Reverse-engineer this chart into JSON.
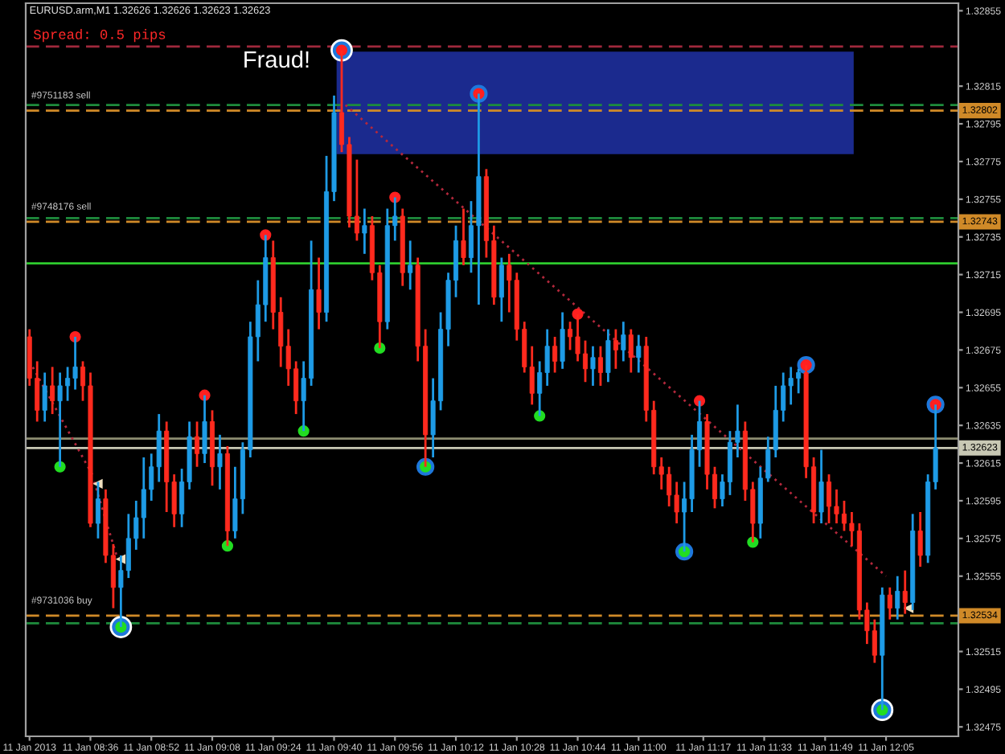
{
  "chart_data": {
    "type": "candlestick",
    "title": "EURUSD.arm,M1 1.32626 1.32626 1.32623 1.32623",
    "x": [
      "2013-01-11T08:20",
      "2013-01-11T08:22",
      "2013-01-11T08:24",
      "2013-01-11T08:26",
      "2013-01-11T08:28",
      "2013-01-11T08:30",
      "2013-01-11T08:32",
      "2013-01-11T08:34",
      "2013-01-11T08:36",
      "2013-01-11T08:38",
      "2013-01-11T08:40",
      "2013-01-11T08:42",
      "2013-01-11T08:44",
      "2013-01-11T08:46",
      "2013-01-11T08:48",
      "2013-01-11T08:50",
      "2013-01-11T08:52",
      "2013-01-11T08:54",
      "2013-01-11T08:56",
      "2013-01-11T08:58",
      "2013-01-11T09:00",
      "2013-01-11T09:02",
      "2013-01-11T09:04",
      "2013-01-11T09:06",
      "2013-01-11T09:08",
      "2013-01-11T09:10",
      "2013-01-11T09:12",
      "2013-01-11T09:14",
      "2013-01-11T09:16",
      "2013-01-11T09:18",
      "2013-01-11T09:20",
      "2013-01-11T09:22",
      "2013-01-11T09:24",
      "2013-01-11T09:26",
      "2013-01-11T09:28",
      "2013-01-11T09:30",
      "2013-01-11T09:32",
      "2013-01-11T09:34",
      "2013-01-11T09:36",
      "2013-01-11T09:38",
      "2013-01-11T09:40",
      "2013-01-11T09:42",
      "2013-01-11T09:44",
      "2013-01-11T09:46",
      "2013-01-11T09:48",
      "2013-01-11T09:50",
      "2013-01-11T09:52",
      "2013-01-11T09:54",
      "2013-01-11T09:56",
      "2013-01-11T09:58",
      "2013-01-11T10:00",
      "2013-01-11T10:02",
      "2013-01-11T10:04",
      "2013-01-11T10:06",
      "2013-01-11T10:08",
      "2013-01-11T10:10",
      "2013-01-11T10:12",
      "2013-01-11T10:14",
      "2013-01-11T10:16",
      "2013-01-11T10:18",
      "2013-01-11T10:20",
      "2013-01-11T10:22",
      "2013-01-11T10:24",
      "2013-01-11T10:26",
      "2013-01-11T10:28",
      "2013-01-11T10:30",
      "2013-01-11T10:32",
      "2013-01-11T10:34",
      "2013-01-11T10:36",
      "2013-01-11T10:38",
      "2013-01-11T10:40",
      "2013-01-11T10:42",
      "2013-01-11T10:44",
      "2013-01-11T10:46",
      "2013-01-11T10:48",
      "2013-01-11T10:50",
      "2013-01-11T10:52",
      "2013-01-11T10:54",
      "2013-01-11T10:56",
      "2013-01-11T10:58",
      "2013-01-11T11:00",
      "2013-01-11T11:02",
      "2013-01-11T11:04",
      "2013-01-11T11:06",
      "2013-01-11T11:08",
      "2013-01-11T11:10",
      "2013-01-11T11:12",
      "2013-01-11T11:14",
      "2013-01-11T11:16",
      "2013-01-11T11:18",
      "2013-01-11T11:20",
      "2013-01-11T11:22",
      "2013-01-11T11:24",
      "2013-01-11T11:26",
      "2013-01-11T11:28",
      "2013-01-11T11:30",
      "2013-01-11T11:32",
      "2013-01-11T11:34",
      "2013-01-11T11:36",
      "2013-01-11T11:38",
      "2013-01-11T11:40",
      "2013-01-11T11:42",
      "2013-01-11T11:44",
      "2013-01-11T11:46",
      "2013-01-11T11:48",
      "2013-01-11T11:50",
      "2013-01-11T11:52",
      "2013-01-11T11:54",
      "2013-01-11T11:56",
      "2013-01-11T11:58",
      "2013-01-11T12:00",
      "2013-01-11T12:02",
      "2013-01-11T12:04",
      "2013-01-11T12:06",
      "2013-01-11T12:08",
      "2013-01-11T12:10",
      "2013-01-11T12:12",
      "2013-01-11T12:14",
      "2013-01-11T12:16",
      "2013-01-11T12:18"
    ],
    "ohlc": [
      [
        1.32682,
        1.32686,
        1.32656,
        1.3266
      ],
      [
        1.3266,
        1.32669,
        1.32637,
        1.32643
      ],
      [
        1.32643,
        1.32663,
        1.32637,
        1.32656
      ],
      [
        1.32656,
        1.32666,
        1.32641,
        1.32648
      ],
      [
        1.32648,
        1.32663,
        1.32613,
        1.32656
      ],
      [
        1.32656,
        1.32666,
        1.32648,
        1.3266
      ],
      [
        1.3266,
        1.32682,
        1.32654,
        1.32666
      ],
      [
        1.32666,
        1.32669,
        1.32648,
        1.32656
      ],
      [
        1.32656,
        1.32663,
        1.32581,
        1.32583
      ],
      [
        1.32583,
        1.32605,
        1.32575,
        1.32596
      ],
      [
        1.32596,
        1.32601,
        1.32562,
        1.32566
      ],
      [
        1.32566,
        1.32572,
        1.32538,
        1.32549
      ],
      [
        1.32549,
        1.32566,
        1.32528,
        1.32558
      ],
      [
        1.32558,
        1.32588,
        1.32554,
        1.32575
      ],
      [
        1.32575,
        1.32595,
        1.32569,
        1.32586
      ],
      [
        1.32586,
        1.32618,
        1.32575,
        1.32601
      ],
      [
        1.32601,
        1.3262,
        1.32595,
        1.32613
      ],
      [
        1.32613,
        1.32641,
        1.32605,
        1.32632
      ],
      [
        1.32632,
        1.32637,
        1.32589,
        1.32605
      ],
      [
        1.32605,
        1.32609,
        1.32581,
        1.32588
      ],
      [
        1.32588,
        1.32612,
        1.32581,
        1.32605
      ],
      [
        1.32605,
        1.32637,
        1.32601,
        1.32629
      ],
      [
        1.32629,
        1.32637,
        1.32613,
        1.3262
      ],
      [
        1.3262,
        1.32651,
        1.32615,
        1.32637
      ],
      [
        1.32637,
        1.32643,
        1.32603,
        1.32613
      ],
      [
        1.32613,
        1.3263,
        1.32601,
        1.3262
      ],
      [
        1.3262,
        1.32624,
        1.32571,
        1.32579
      ],
      [
        1.32579,
        1.32613,
        1.32575,
        1.32596
      ],
      [
        1.32596,
        1.32626,
        1.32588,
        1.32622
      ],
      [
        1.32622,
        1.3269,
        1.32618,
        1.32682
      ],
      [
        1.32682,
        1.32712,
        1.32669,
        1.32699
      ],
      [
        1.32699,
        1.32736,
        1.3269,
        1.32724
      ],
      [
        1.32724,
        1.32733,
        1.32686,
        1.32695
      ],
      [
        1.32695,
        1.32703,
        1.32666,
        1.32677
      ],
      [
        1.32677,
        1.32686,
        1.32656,
        1.32665
      ],
      [
        1.32665,
        1.32669,
        1.32641,
        1.32648
      ],
      [
        1.32648,
        1.32669,
        1.32632,
        1.3266
      ],
      [
        1.3266,
        1.32733,
        1.32656,
        1.32707
      ],
      [
        1.32707,
        1.32724,
        1.32686,
        1.32695
      ],
      [
        1.32695,
        1.32778,
        1.3269,
        1.32759
      ],
      [
        1.32759,
        1.3281,
        1.32754,
        1.32801
      ],
      [
        1.32801,
        1.32834,
        1.3278,
        1.32784
      ],
      [
        1.32784,
        1.32788,
        1.3274,
        1.32746
      ],
      [
        1.32746,
        1.32776,
        1.32733,
        1.32737
      ],
      [
        1.32737,
        1.3275,
        1.32726,
        1.32741
      ],
      [
        1.32741,
        1.32746,
        1.32712,
        1.32716
      ],
      [
        1.32716,
        1.3272,
        1.32676,
        1.3269
      ],
      [
        1.3269,
        1.3275,
        1.32686,
        1.32741
      ],
      [
        1.32741,
        1.32756,
        1.32733,
        1.32746
      ],
      [
        1.32746,
        1.3275,
        1.32709,
        1.32716
      ],
      [
        1.32716,
        1.32733,
        1.32707,
        1.3272
      ],
      [
        1.3272,
        1.32724,
        1.32669,
        1.32677
      ],
      [
        1.32677,
        1.32686,
        1.32613,
        1.3263
      ],
      [
        1.3263,
        1.3266,
        1.32618,
        1.32648
      ],
      [
        1.32648,
        1.32695,
        1.32643,
        1.32686
      ],
      [
        1.32686,
        1.32716,
        1.32677,
        1.32712
      ],
      [
        1.32712,
        1.32741,
        1.32703,
        1.32733
      ],
      [
        1.32733,
        1.3275,
        1.3272,
        1.32724
      ],
      [
        1.32724,
        1.32754,
        1.32716,
        1.32741
      ],
      [
        1.32741,
        1.32811,
        1.32699,
        1.32767
      ],
      [
        1.32767,
        1.32771,
        1.32724,
        1.32733
      ],
      [
        1.32733,
        1.32741,
        1.32699,
        1.32703
      ],
      [
        1.32703,
        1.32724,
        1.3269,
        1.3272
      ],
      [
        1.3272,
        1.32726,
        1.32695,
        1.32712
      ],
      [
        1.32712,
        1.32716,
        1.3268,
        1.32686
      ],
      [
        1.32686,
        1.3269,
        1.32663,
        1.32666
      ],
      [
        1.32666,
        1.32677,
        1.32646,
        1.32652
      ],
      [
        1.32652,
        1.32669,
        1.3264,
        1.32663
      ],
      [
        1.32663,
        1.32686,
        1.32656,
        1.32677
      ],
      [
        1.32677,
        1.32682,
        1.32663,
        1.32669
      ],
      [
        1.32669,
        1.32695,
        1.32665,
        1.32686
      ],
      [
        1.32686,
        1.3269,
        1.32675,
        1.32682
      ],
      [
        1.32682,
        1.32694,
        1.32669,
        1.32673
      ],
      [
        1.32673,
        1.3268,
        1.32658,
        1.32665
      ],
      [
        1.32665,
        1.32677,
        1.32656,
        1.32671
      ],
      [
        1.32671,
        1.32677,
        1.32656,
        1.32663
      ],
      [
        1.32663,
        1.32686,
        1.32658,
        1.3268
      ],
      [
        1.3268,
        1.32686,
        1.32665,
        1.32675
      ],
      [
        1.32675,
        1.3269,
        1.32669,
        1.32683
      ],
      [
        1.32683,
        1.32686,
        1.32663,
        1.32671
      ],
      [
        1.32671,
        1.32683,
        1.32663,
        1.32677
      ],
      [
        1.32677,
        1.32682,
        1.32637,
        1.32643
      ],
      [
        1.32643,
        1.32648,
        1.32609,
        1.32613
      ],
      [
        1.32613,
        1.32618,
        1.32601,
        1.32609
      ],
      [
        1.32609,
        1.32613,
        1.32592,
        1.32598
      ],
      [
        1.32598,
        1.32605,
        1.32583,
        1.32589
      ],
      [
        1.32589,
        1.32605,
        1.32568,
        1.32596
      ],
      [
        1.32596,
        1.3263,
        1.32589,
        1.32622
      ],
      [
        1.32622,
        1.32648,
        1.32613,
        1.32637
      ],
      [
        1.32637,
        1.32641,
        1.32601,
        1.32609
      ],
      [
        1.32609,
        1.32613,
        1.32591,
        1.32596
      ],
      [
        1.32596,
        1.32609,
        1.32592,
        1.32605
      ],
      [
        1.32605,
        1.32632,
        1.32598,
        1.32626
      ],
      [
        1.32626,
        1.32646,
        1.32618,
        1.32632
      ],
      [
        1.32632,
        1.32637,
        1.32595,
        1.32601
      ],
      [
        1.32601,
        1.32605,
        1.32573,
        1.32583
      ],
      [
        1.32583,
        1.32613,
        1.32575,
        1.32607
      ],
      [
        1.32607,
        1.32629,
        1.32605,
        1.32622
      ],
      [
        1.32622,
        1.32656,
        1.32618,
        1.32643
      ],
      [
        1.32643,
        1.32663,
        1.32637,
        1.32656
      ],
      [
        1.32656,
        1.32666,
        1.32646,
        1.3266
      ],
      [
        1.3266,
        1.32665,
        1.32652,
        1.32663
      ],
      [
        1.32663,
        1.32667,
        1.32607,
        1.32613
      ],
      [
        1.32613,
        1.32618,
        1.32583,
        1.32589
      ],
      [
        1.32589,
        1.32622,
        1.32583,
        1.32605
      ],
      [
        1.32605,
        1.32609,
        1.32583,
        1.32592
      ],
      [
        1.32592,
        1.32601,
        1.32583,
        1.32588
      ],
      [
        1.32588,
        1.32595,
        1.32579,
        1.32583
      ],
      [
        1.32583,
        1.32589,
        1.32571,
        1.32579
      ],
      [
        1.32579,
        1.32583,
        1.32532,
        1.32537
      ],
      [
        1.32537,
        1.32541,
        1.32519,
        1.32526
      ],
      [
        1.32526,
        1.32532,
        1.32509,
        1.32513
      ],
      [
        1.32513,
        1.32549,
        1.32484,
        1.32545
      ],
      [
        1.32545,
        1.32549,
        1.32532,
        1.32538
      ],
      [
        1.32538,
        1.32555,
        1.32532,
        1.32547
      ],
      [
        1.32547,
        1.32558,
        1.32535,
        1.32541
      ],
      [
        1.32541,
        1.32588,
        1.32537,
        1.32579
      ],
      [
        1.32579,
        1.32589,
        1.3256,
        1.32566
      ],
      [
        1.32566,
        1.32609,
        1.32562,
        1.32605
      ],
      [
        1.32605,
        1.32646,
        1.32601,
        1.32623
      ]
    ],
    "colors": [
      "#ff2a1e",
      "#ff2a1e",
      "#1e9be6",
      "#ff2a1e",
      "#1e9be6",
      "#1e9be6",
      "#1e9be6",
      "#ff2a1e",
      "#ff2a1e",
      "#1e9be6",
      "#ff2a1e",
      "#ff2a1e",
      "#1e9be6",
      "#1e9be6",
      "#1e9be6",
      "#1e9be6",
      "#1e9be6",
      "#1e9be6",
      "#ff2a1e",
      "#ff2a1e",
      "#1e9be6",
      "#1e9be6",
      "#ff2a1e",
      "#1e9be6",
      "#ff2a1e",
      "#1e9be6",
      "#ff2a1e",
      "#1e9be6",
      "#1e9be6",
      "#1e9be6",
      "#1e9be6",
      "#1e9be6",
      "#ff2a1e",
      "#ff2a1e",
      "#ff2a1e",
      "#ff2a1e",
      "#1e9be6",
      "#1e9be6",
      "#ff2a1e",
      "#1e9be6",
      "#1e9be6",
      "#ff2a1e",
      "#ff2a1e",
      "#ff2a1e",
      "#1e9be6",
      "#ff2a1e",
      "#ff2a1e",
      "#1e9be6",
      "#1e9be6",
      "#ff2a1e",
      "#1e9be6",
      "#ff2a1e",
      "#ff2a1e",
      "#1e9be6",
      "#1e9be6",
      "#1e9be6",
      "#1e9be6",
      "#ff2a1e",
      "#1e9be6",
      "#1e9be6",
      "#ff2a1e",
      "#ff2a1e",
      "#1e9be6",
      "#ff2a1e",
      "#ff2a1e",
      "#ff2a1e",
      "#ff2a1e",
      "#1e9be6",
      "#1e9be6",
      "#ff2a1e",
      "#1e9be6",
      "#ff2a1e",
      "#ff2a1e",
      "#ff2a1e",
      "#1e9be6",
      "#ff2a1e",
      "#1e9be6",
      "#ff2a1e",
      "#1e9be6",
      "#ff2a1e",
      "#1e9be6",
      "#ff2a1e",
      "#ff2a1e",
      "#ff2a1e",
      "#ff2a1e",
      "#ff2a1e",
      "#1e9be6",
      "#1e9be6",
      "#1e9be6",
      "#ff2a1e",
      "#ff2a1e",
      "#1e9be6",
      "#1e9be6",
      "#1e9be6",
      "#ff2a1e",
      "#ff2a1e",
      "#1e9be6",
      "#1e9be6",
      "#1e9be6",
      "#1e9be6",
      "#1e9be6",
      "#1e9be6",
      "#ff2a1e",
      "#ff2a1e",
      "#1e9be6",
      "#ff2a1e",
      "#ff2a1e",
      "#ff2a1e",
      "#ff2a1e",
      "#ff2a1e",
      "#ff2a1e",
      "#ff2a1e",
      "#1e9be6",
      "#ff2a1e",
      "#1e9be6",
      "#ff2a1e",
      "#1e9be6",
      "#ff2a1e",
      "#1e9be6",
      "#1e9be6"
    ],
    "marker": "circle",
    "series": [
      {
        "type": "scatter",
        "color": "#ffffff",
        "x": [
          "2013-01-11T08:44",
          "2013-01-11T09:42",
          "2013-01-11T12:04"
        ],
        "values": [
          1.32528,
          1.32834,
          1.32484
        ]
      },
      {
        "type": "scatter",
        "color": "#1e78dc",
        "x": [
          "2013-01-11T08:44",
          "2013-01-11T09:42",
          "2013-01-11T10:04",
          "2013-01-11T10:18",
          "2013-01-11T11:12",
          "2013-01-11T11:44",
          "2013-01-11T12:04",
          "2013-01-11T12:18"
        ],
        "values": [
          1.32528,
          1.32834,
          1.32613,
          1.32811,
          1.32568,
          1.32667,
          1.32484,
          1.32646
        ]
      },
      {
        "type": "scatter",
        "color": "#ff2020",
        "x": [
          "2013-01-11T08:32",
          "2013-01-11T09:06",
          "2013-01-11T09:22",
          "2013-01-11T09:42",
          "2013-01-11T09:56",
          "2013-01-11T10:18",
          "2013-01-11T10:44",
          "2013-01-11T11:16",
          "2013-01-11T11:44",
          "2013-01-11T12:18"
        ],
        "values": [
          1.32682,
          1.32651,
          1.32736,
          1.32834,
          1.32756,
          1.32811,
          1.32694,
          1.32648,
          1.32667,
          1.32646
        ]
      },
      {
        "type": "scatter",
        "color": "#22dd22",
        "x": [
          "2013-01-11T08:28",
          "2013-01-11T08:44",
          "2013-01-11T09:12",
          "2013-01-11T09:32",
          "2013-01-11T09:52",
          "2013-01-11T10:04",
          "2013-01-11T10:34",
          "2013-01-11T11:12",
          "2013-01-11T11:30",
          "2013-01-11T12:04"
        ],
        "values": [
          1.32613,
          1.32528,
          1.32571,
          1.32632,
          1.32676,
          1.32613,
          1.3264,
          1.32568,
          1.32573,
          1.32484
        ]
      },
      {
        "type": "line",
        "color": "#b4283c",
        "line_style": "dotted",
        "marker": "none",
        "x": [
          "2013-01-11T09:43",
          "2013-01-11T12:05"
        ],
        "values": [
          1.32805,
          1.32555
        ]
      },
      {
        "type": "line",
        "color": "#b4283c",
        "line_style": "dotted",
        "marker": "none",
        "x": [
          "2013-01-11T08:20",
          "2013-01-11T08:37"
        ],
        "values": [
          1.32669,
          1.32607
        ]
      },
      {
        "type": "line",
        "color": "#b4283c",
        "line_style": "dotted",
        "marker": "none",
        "x": [
          "2013-01-11T08:37",
          "2013-01-11T08:43"
        ],
        "values": [
          1.32605,
          1.32565
        ]
      },
      {
        "type": "scatter",
        "color": "#f0e0c0",
        "marker": "triangle",
        "x": [
          "2013-01-11T08:38",
          "2013-01-11T08:44",
          "2013-01-11T12:11"
        ],
        "values": [
          1.32604,
          1.32564,
          1.32538
        ]
      }
    ],
    "xlim": [
      "2013-01-11T08:19",
      "2013-01-11T12:24"
    ],
    "xticks": [
      {
        "value": "2013-01-11T08:20",
        "label": "11 Jan 2013"
      },
      {
        "value": "2013-01-11T08:36",
        "label": "11 Jan 08:36"
      },
      {
        "value": "2013-01-11T08:52",
        "label": "11 Jan 08:52"
      },
      {
        "value": "2013-01-11T09:08",
        "label": "11 Jan 09:08"
      },
      {
        "value": "2013-01-11T09:24",
        "label": "11 Jan 09:24"
      },
      {
        "value": "2013-01-11T09:40",
        "label": "11 Jan 09:40"
      },
      {
        "value": "2013-01-11T09:56",
        "label": "11 Jan 09:56"
      },
      {
        "value": "2013-01-11T10:12",
        "label": "11 Jan 10:12"
      },
      {
        "value": "2013-01-11T10:28",
        "label": "11 Jan 10:28"
      },
      {
        "value": "2013-01-11T10:44",
        "label": "11 Jan 10:44"
      },
      {
        "value": "2013-01-11T11:00",
        "label": "11 Jan 11:00"
      },
      {
        "value": "2013-01-11T11:17",
        "label": "11 Jan 11:17"
      },
      {
        "value": "2013-01-11T11:33",
        "label": "11 Jan 11:33"
      },
      {
        "value": "2013-01-11T11:49",
        "label": "11 Jan 11:49"
      },
      {
        "value": "2013-01-11T12:05",
        "label": "11 Jan 12:05"
      }
    ],
    "ylim": [
      1.3247,
      1.32859
    ],
    "yticks": [
      1.32855,
      1.32815,
      1.32795,
      1.32775,
      1.32755,
      1.32735,
      1.32715,
      1.32695,
      1.32675,
      1.32655,
      1.32635,
      1.32615,
      1.32595,
      1.32575,
      1.32555,
      1.32515,
      1.32495,
      1.32475
    ],
    "ref_lines": [
      {
        "axis": "y",
        "value": 1.32836,
        "color": "#a0283c",
        "line_style": "dashed"
      },
      {
        "axis": "y",
        "value": 1.32805,
        "color": "#1e8c3c",
        "line_style": "dashed"
      },
      {
        "axis": "y",
        "value": 1.32802,
        "color": "#d08a28",
        "line_style": "dashed",
        "label": "1.32802"
      },
      {
        "axis": "y",
        "value": 1.32745,
        "color": "#1e8c3c",
        "line_style": "dashed"
      },
      {
        "axis": "y",
        "value": 1.32743,
        "color": "#d08a28",
        "line_style": "dashed",
        "label": "1.32743"
      },
      {
        "axis": "y",
        "value": 1.32721,
        "color": "#2ecc2e",
        "line_style": "solid"
      },
      {
        "axis": "y",
        "value": 1.32628,
        "color": "#8c8c70",
        "line_style": "solid"
      },
      {
        "axis": "y",
        "value": 1.32623,
        "color": "#c8c8b4",
        "line_style": "solid",
        "label": "1.32623"
      },
      {
        "axis": "y",
        "value": 1.32534,
        "color": "#d08a28",
        "line_style": "dashed",
        "label": "1.32534"
      },
      {
        "axis": "y",
        "value": 1.3253,
        "color": "#1e8c3c",
        "line_style": "dashed"
      }
    ],
    "annotations": [
      "Spread: 0.5 pips",
      {
        "text": "Fraud!",
        "x": "2013-01-11T09:42",
        "y": 1.32834
      },
      {
        "text": "#9751183 sell",
        "y": 1.32802
      },
      {
        "text": "#9748176 sell",
        "y": 1.32743
      },
      {
        "text": "#9731036 buy",
        "y": 1.32534
      }
    ]
  }
}
